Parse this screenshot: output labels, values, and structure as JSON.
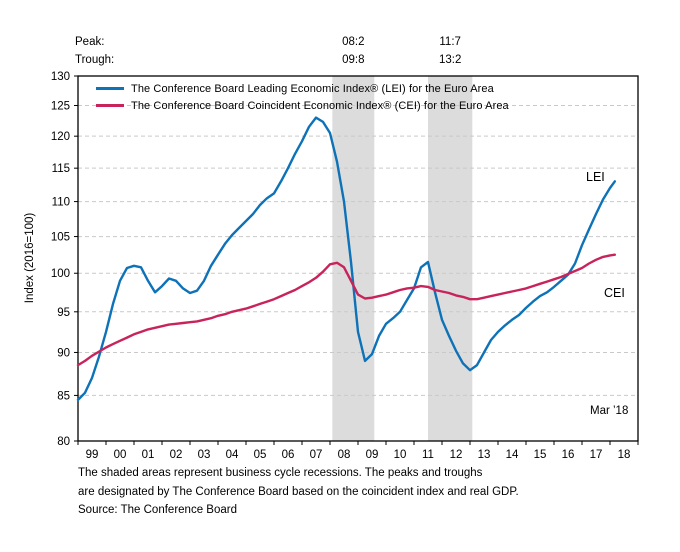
{
  "header": {
    "peak_label": "Peak:",
    "trough_label": "Trough:",
    "peaks": [
      "08:2",
      "11:7"
    ],
    "troughs": [
      "09:8",
      "13:2"
    ]
  },
  "legend": [
    {
      "series": "LEI",
      "label": "The Conference Board Leading Economic Index® (LEI) for the Euro Area"
    },
    {
      "series": "CEI",
      "label": "The Conference Board Coincident Economic Index® (CEI) for the Euro Area"
    }
  ],
  "annotations": {
    "lei": "LEI",
    "cei": "CEI",
    "last_point": "Mar ’18"
  },
  "footnote_line1": "The shaded areas represent business cycle recessions. The peaks and troughs",
  "footnote_line2": "are designated by The Conference Board based on the coincident index and real GDP.",
  "source": "Source: The Conference Board",
  "colors": {
    "lei": "#0d72b7",
    "cei": "#c8235a",
    "recession_band": "#dcdcdc",
    "gridline": "#c9c9c9",
    "frame": "#000000",
    "text": "#000000"
  },
  "chart_data": {
    "type": "line",
    "title": "",
    "xlabel": "",
    "ylabel": "Index (2016=100)",
    "yscale": "log",
    "ylim": [
      80,
      130
    ],
    "xlim": [
      1999,
      2019
    ],
    "grid": "horizontal-dashed",
    "legend_position": "top-left-inside",
    "y_ticks": [
      80,
      85,
      90,
      95,
      100,
      105,
      110,
      115,
      120,
      125,
      130
    ],
    "x_tick_labels": [
      "99",
      "00",
      "01",
      "02",
      "03",
      "04",
      "05",
      "06",
      "07",
      "08",
      "09",
      "10",
      "11",
      "12",
      "13",
      "14",
      "15",
      "16",
      "17",
      "18"
    ],
    "recessions": [
      {
        "peak": "08:2",
        "trough": "09:8",
        "start": 2008.083,
        "end": 2009.583
      },
      {
        "peak": "11:7",
        "trough": "13:2",
        "start": 2011.5,
        "end": 2013.083
      }
    ],
    "x": [
      1999,
      1999.25,
      1999.5,
      1999.75,
      2000,
      2000.25,
      2000.5,
      2000.75,
      2001,
      2001.25,
      2001.5,
      2001.75,
      2002,
      2002.25,
      2002.5,
      2002.75,
      2003,
      2003.25,
      2003.5,
      2003.75,
      2004,
      2004.25,
      2004.5,
      2004.75,
      2005,
      2005.25,
      2005.5,
      2005.75,
      2006,
      2006.25,
      2006.5,
      2006.75,
      2007,
      2007.25,
      2007.5,
      2007.75,
      2008,
      2008.25,
      2008.5,
      2008.75,
      2009,
      2009.25,
      2009.5,
      2009.75,
      2010,
      2010.25,
      2010.5,
      2010.75,
      2011,
      2011.25,
      2011.5,
      2011.75,
      2012,
      2012.25,
      2012.5,
      2012.75,
      2013,
      2013.25,
      2013.5,
      2013.75,
      2014,
      2014.25,
      2014.5,
      2014.75,
      2015,
      2015.25,
      2015.5,
      2015.75,
      2016,
      2016.25,
      2016.5,
      2016.75,
      2017,
      2017.25,
      2017.5,
      2017.75,
      2018,
      2018.17
    ],
    "series": [
      {
        "name": "LEI",
        "values": [
          84.5,
          85.3,
          87,
          89.5,
          92.5,
          96,
          99,
          100.7,
          101,
          100.8,
          99,
          97.5,
          98.3,
          99.3,
          99,
          98,
          97.4,
          97.7,
          99,
          101,
          102.5,
          104,
          105.2,
          106.2,
          107.2,
          108.2,
          109.5,
          110.5,
          111.2,
          113,
          115,
          117.2,
          119.2,
          121.5,
          123,
          122.3,
          120.5,
          116,
          110,
          101.5,
          92.5,
          89,
          89.8,
          92,
          93.5,
          94.2,
          95,
          96.5,
          98,
          100.8,
          101.5,
          97.5,
          94,
          92,
          90.2,
          88.7,
          87.9,
          88.5,
          90,
          91.5,
          92.5,
          93.3,
          94,
          94.6,
          95.5,
          96.3,
          97,
          97.5,
          98.2,
          99,
          99.8,
          101.3,
          103.8,
          106,
          108.2,
          110.3,
          112,
          113
        ]
      },
      {
        "name": "CEI",
        "values": [
          88.5,
          89,
          89.6,
          90.1,
          90.6,
          91,
          91.4,
          91.8,
          92.2,
          92.5,
          92.8,
          93,
          93.2,
          93.4,
          93.5,
          93.6,
          93.7,
          93.8,
          94,
          94.2,
          94.5,
          94.7,
          95,
          95.2,
          95.4,
          95.7,
          96,
          96.3,
          96.6,
          97,
          97.4,
          97.8,
          98.3,
          98.8,
          99.4,
          100.2,
          101.2,
          101.4,
          100.8,
          99,
          97.2,
          96.7,
          96.8,
          97,
          97.2,
          97.5,
          97.8,
          98,
          98.1,
          98.3,
          98.2,
          97.8,
          97.6,
          97.4,
          97.1,
          96.9,
          96.6,
          96.6,
          96.8,
          97,
          97.2,
          97.4,
          97.6,
          97.8,
          98,
          98.3,
          98.6,
          98.9,
          99.2,
          99.5,
          99.9,
          100.3,
          100.7,
          101.3,
          101.8,
          102.2,
          102.4,
          102.5
        ]
      }
    ]
  }
}
